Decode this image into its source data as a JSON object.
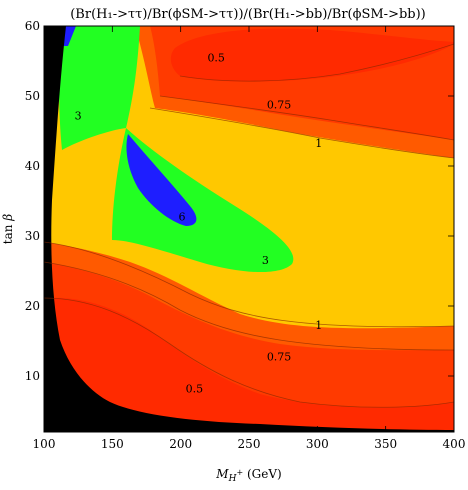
{
  "chart_data": {
    "type": "contour",
    "title": "(Br(H₁->ττ)/Br(ϕSM->ττ))/(Br(H₁->bb)/Br(ϕSM->bb))",
    "xlabel": "M_H+ (GeV)",
    "ylabel": "tan β",
    "xlim": [
      100,
      400
    ],
    "ylim": [
      2,
      60
    ],
    "xticks": [
      "100",
      "150",
      "200",
      "250",
      "300",
      "350",
      "400"
    ],
    "yticks": [
      "10",
      "20",
      "30",
      "40",
      "50",
      "60"
    ],
    "contour_levels": [
      0.5,
      0.75,
      1,
      3,
      6
    ],
    "contour_labels": [
      {
        "text": "0.5",
        "x": 226,
        "y": 55.5
      },
      {
        "text": "0.75",
        "x": 272,
        "y": 48.8
      },
      {
        "text": "1",
        "x": 301,
        "y": 43.3
      },
      {
        "text": "3",
        "x": 125,
        "y": 47.2
      },
      {
        "text": "6",
        "x": 201,
        "y": 32.8
      },
      {
        "text": "3",
        "x": 262,
        "y": 26.6
      },
      {
        "text": "1",
        "x": 301,
        "y": 17.3
      },
      {
        "text": "0.75",
        "x": 272,
        "y": 12.8
      },
      {
        "text": "0.5",
        "x": 210,
        "y": 8.2
      }
    ],
    "fill_colors": {
      "excluded": "#000000",
      "below_0.5": "#ff2a00",
      "0.5_to_0.75": "#ff3a00",
      "0.75_to_1": "#ff5a00",
      "1_to_3": "#ffc800",
      "3_to_6": "#22ff22",
      "above_6": "#1e1eff"
    },
    "grid": false,
    "legend": "none"
  }
}
